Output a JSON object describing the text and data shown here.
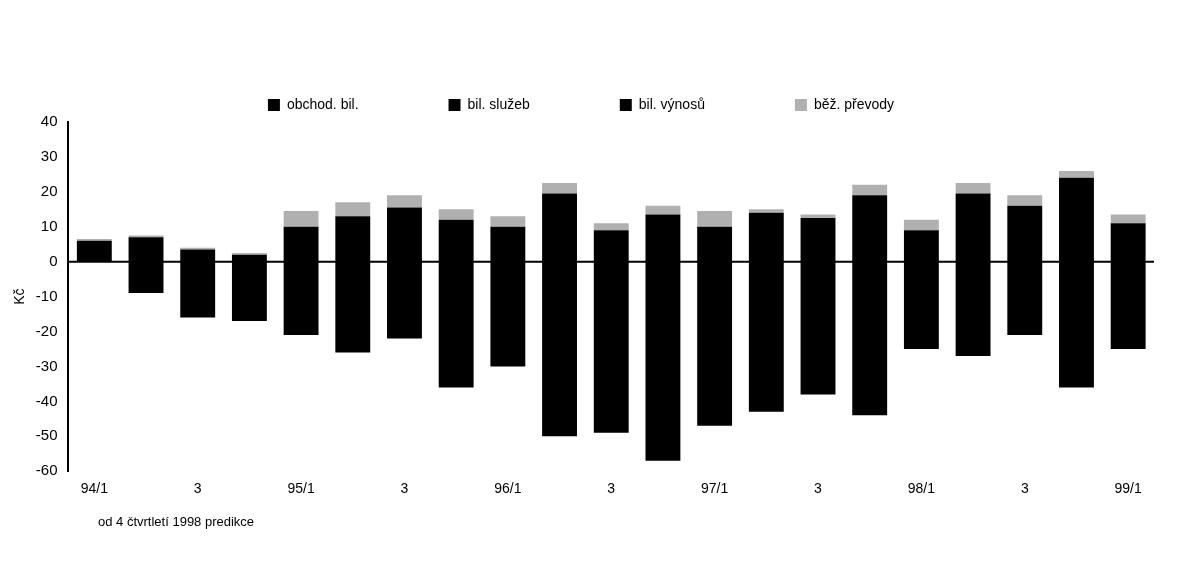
{
  "chart_data": {
    "type": "bar",
    "stacked": true,
    "ylabel": "Kč",
    "legend": "top",
    "grid": false,
    "categories": [
      "94/1",
      null,
      "3",
      null,
      "95/1",
      null,
      "3",
      null,
      "96/1",
      null,
      "3",
      null,
      "97/1",
      null,
      "3",
      null,
      "98/1",
      null,
      "3",
      null,
      "99/1"
    ],
    "series": [
      {
        "name": "obchod. bil.",
        "color": "#000000",
        "values": [
          0,
          -9,
          -16,
          -17,
          -21,
          -26,
          -22,
          -36,
          -30,
          -50,
          -49,
          -57,
          -47,
          -43,
          -38,
          -44,
          -25,
          -27,
          -21,
          -36,
          -25
        ]
      },
      {
        "name": "bil. služeb",
        "color": "#000000",
        "values": [
          6,
          7,
          3.5,
          2,
          10,
          13,
          15.5,
          12,
          10,
          19.5,
          9,
          13.5,
          10,
          14,
          12.5,
          19,
          9,
          19.5,
          16,
          24,
          11
        ]
      },
      {
        "name": "bil. výnosů",
        "color": "#000000",
        "values": [
          null,
          null,
          null,
          null,
          null,
          null,
          null,
          null,
          null,
          null,
          null,
          null,
          null,
          null,
          null,
          null,
          null,
          null,
          null,
          null,
          null
        ]
      },
      {
        "name": "běž. převody",
        "color": "#b0b0b0",
        "values": [
          0.5,
          0.5,
          0.5,
          0.5,
          4.5,
          4,
          3.5,
          3,
          3,
          3,
          2,
          2.5,
          4.5,
          1,
          1,
          3,
          3,
          3,
          3,
          2,
          2.5
        ]
      }
    ],
    "ref_lines": [
      {
        "axis": "y",
        "value": 0,
        "color": "#000000"
      }
    ],
    "ylim": [
      -60,
      40
    ],
    "yticks": [
      -60,
      -50,
      -40,
      -30,
      -20,
      -10,
      0,
      10,
      20,
      30,
      40
    ],
    "annotations": [
      "od 4  čtvrtletí 1998 predikce"
    ]
  }
}
